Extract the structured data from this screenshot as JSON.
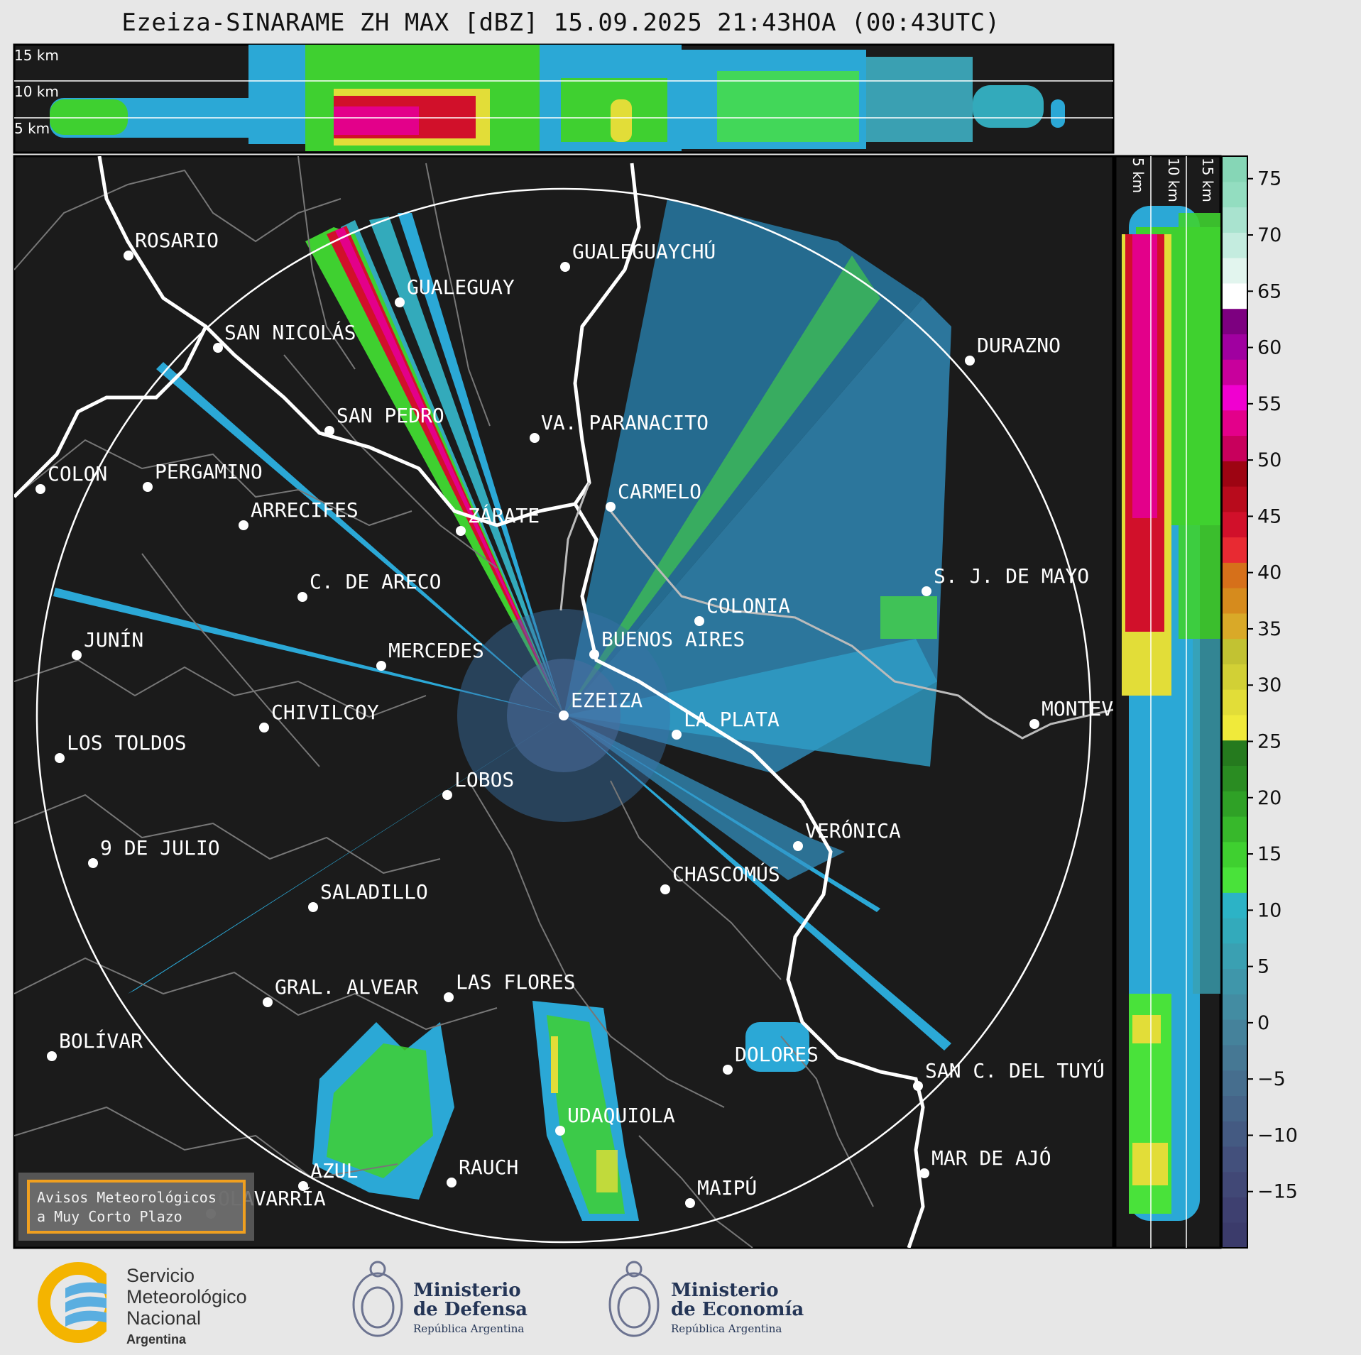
{
  "title": "Ezeiza-SINARAME ZH MAX [dBZ] 15.09.2025 21:43HOA (00:43UTC)",
  "top_panel": {
    "height_labels": [
      "15 km",
      "10 km",
      "5 km"
    ]
  },
  "side_panel": {
    "height_labels": [
      "5 km",
      "10 km",
      "15 km"
    ]
  },
  "colorbar": {
    "ticks": [
      "75",
      "70",
      "65",
      "60",
      "55",
      "50",
      "45",
      "40",
      "35",
      "30",
      "25",
      "20",
      "15",
      "10",
      "5",
      "0",
      "−5",
      "−10",
      "−15"
    ],
    "range": [
      -20,
      77
    ],
    "colors": [
      "#3b3b6b",
      "#3e4070",
      "#414876",
      "#43507c",
      "#445a82",
      "#456488",
      "#466e8e",
      "#467894",
      "#45829b",
      "#438ca2",
      "#3f96aa",
      "#3aa0b2",
      "#33aabb",
      "#2cb3c6",
      "#49e23a",
      "#3fd030",
      "#37b82b",
      "#2fa126",
      "#2a8c22",
      "#257a1e",
      "#f0ea3a",
      "#e2dd38",
      "#d2d035",
      "#c2c232",
      "#d9a928",
      "#d68b1d",
      "#d6701a",
      "#e82a32",
      "#d1102a",
      "#b80b1c",
      "#9d0412",
      "#c8005c",
      "#e3008a",
      "#f000d0",
      "#c8009c",
      "#a000a0",
      "#7d0080",
      "#ffffff",
      "#e2f5ee",
      "#c4ecdf",
      "#a9e3cf",
      "#93ddc0",
      "#86d6b6"
    ]
  },
  "cities": [
    {
      "name": "ROSARIO",
      "color": "#ffffff"
    },
    {
      "name": "GUALEGUAYCHÚ"
    },
    {
      "name": "GUALEGUAY"
    },
    {
      "name": "SAN NICOLÁS"
    },
    {
      "name": "DURAZNO"
    },
    {
      "name": "SAN PEDRO"
    },
    {
      "name": "VA. PARANACITO"
    },
    {
      "name": "COLON"
    },
    {
      "name": "PERGAMINO"
    },
    {
      "name": "CARMELO"
    },
    {
      "name": "ARRECIFES"
    },
    {
      "name": "ZÁRATE"
    },
    {
      "name": "S. J. DE MAYO"
    },
    {
      "name": "C. DE ARECO"
    },
    {
      "name": "COLONIA"
    },
    {
      "name": "JUNÍN"
    },
    {
      "name": "BUENOS AIRES"
    },
    {
      "name": "MERCEDES"
    },
    {
      "name": "EZEIZA"
    },
    {
      "name": "MONTEV"
    },
    {
      "name": "CHIVILCOY"
    },
    {
      "name": "LA PLATA"
    },
    {
      "name": "LOS TOLDOS"
    },
    {
      "name": "LOBOS"
    },
    {
      "name": "VERÓNICA"
    },
    {
      "name": "9 DE JULIO"
    },
    {
      "name": "CHASCOMÚS"
    },
    {
      "name": "SALADILLO"
    },
    {
      "name": "GRAL. ALVEAR"
    },
    {
      "name": "LAS FLORES"
    },
    {
      "name": "BOLÍVAR"
    },
    {
      "name": "DOLORES"
    },
    {
      "name": "SAN C. DEL TUYÚ"
    },
    {
      "name": "UDAQUIOLA"
    },
    {
      "name": "MAR DE AJÓ"
    },
    {
      "name": "AZUL"
    },
    {
      "name": "RAUCH"
    },
    {
      "name": "OLAVARRÍA"
    },
    {
      "name": "MAIPÚ"
    }
  ],
  "avisos": {
    "line1": "Avisos Meteorológicos",
    "line2": "a Muy Corto Plazo"
  },
  "logos": {
    "smn": {
      "line1": "Servicio",
      "line2": "Meteorológico",
      "line3": "Nacional",
      "line4": "Argentina"
    },
    "defensa": {
      "line1": "Ministerio",
      "line2": "de Defensa",
      "line3": "República Argentina"
    },
    "economia": {
      "line1": "Ministerio",
      "line2": "de Economía",
      "line3": "República Argentina"
    }
  }
}
